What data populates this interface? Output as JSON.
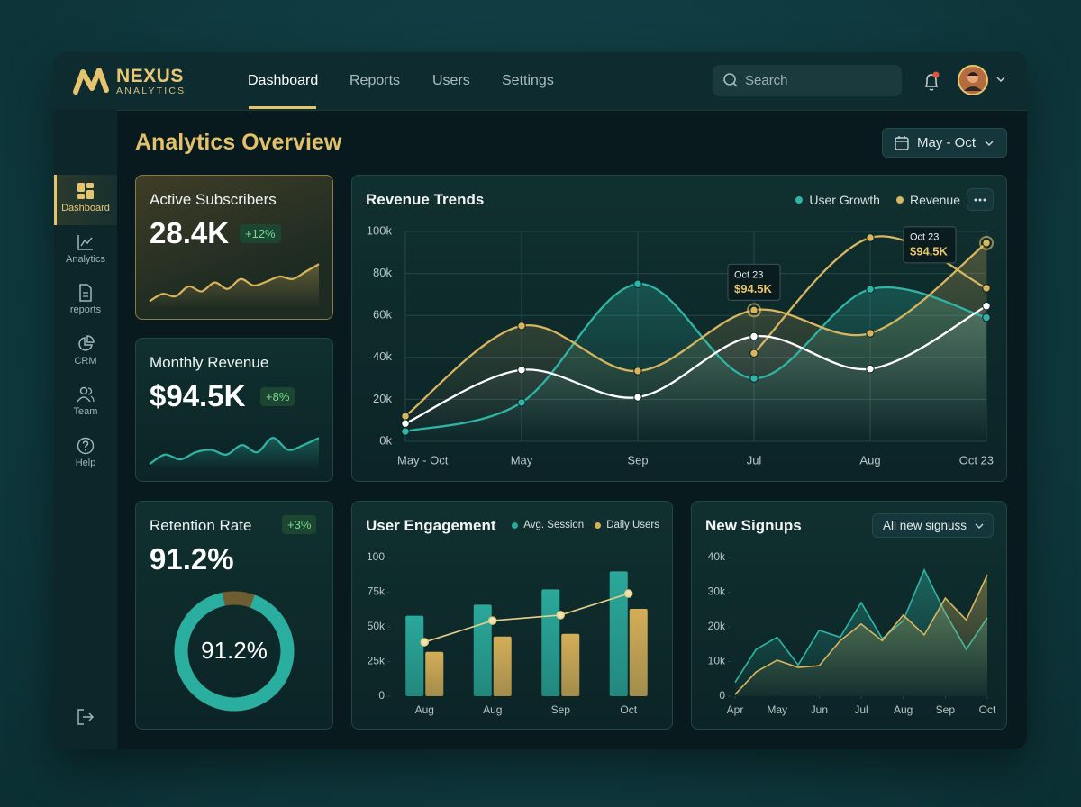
{
  "brand": {
    "name": "NEXUS",
    "tagline": "ANALYTICS"
  },
  "nav": [
    "Dashboard",
    "Reports",
    "Users",
    "Settings"
  ],
  "search": "Search",
  "sidebar": [
    "Dashboard",
    "Analytics",
    "reports",
    "CRM",
    "Team",
    "Help"
  ],
  "title": "Analytics Overview",
  "date_range": "May - Oct",
  "cards": [
    {
      "label": "Active Subscribers",
      "value": "28.4K",
      "change": "+12%",
      "sparkline": {
        "type": "area",
        "color": "#d9b45a",
        "ylim": [
          0,
          100
        ],
        "values": [
          10,
          25,
          20,
          40,
          30,
          48,
          35,
          55,
          42,
          50,
          60,
          55,
          70,
          85
        ]
      }
    },
    {
      "label": "Monthly Revenue",
      "value": "$94.5K",
      "change": "+8%",
      "sparkline": {
        "type": "area",
        "color": "#2fb5a5",
        "ylim": [
          0,
          100
        ],
        "values": [
          5,
          25,
          15,
          30,
          35,
          25,
          45,
          30,
          60,
          35,
          45,
          60
        ]
      }
    }
  ],
  "retention": {
    "label": "Retention Rate",
    "value": "91.2%",
    "change": "+3%",
    "gauge": {
      "type": "donut",
      "value": 91.2,
      "label": "91.2%",
      "range": [
        0,
        100
      ],
      "color": "#2aae9f",
      "track_color": "#6e5d31"
    }
  },
  "revenue_trends": {
    "type": "line",
    "title": "Revenue Trends",
    "categories": [
      "May - Oct",
      "May",
      "Sep",
      "Jul",
      "Aug",
      "Oct 23"
    ],
    "ylim": [
      0,
      100000
    ],
    "yticks": [
      {
        "value": 0,
        "label": "0k"
      },
      {
        "value": 20000,
        "label": "20k"
      },
      {
        "value": 40000,
        "label": "40k"
      },
      {
        "value": 60000,
        "label": "60k"
      },
      {
        "value": 80000,
        "label": "80k"
      },
      {
        "value": 100000,
        "label": "100k"
      }
    ],
    "grid": true,
    "series": [
      {
        "name": "User Growth",
        "color": "#2fb5a5",
        "area": true,
        "values": [
          4700,
          18500,
          75000,
          30000,
          72500,
          59000
        ]
      },
      {
        "name": "Revenue",
        "color": "#d8b660",
        "area": true,
        "values": [
          12000,
          55000,
          33500,
          62500,
          51500,
          94500
        ]
      },
      {
        "color": "#d8b660",
        "values": [
          null,
          null,
          null,
          42000,
          97000,
          73000
        ]
      },
      {
        "color": "#ffffff",
        "area": true,
        "values": [
          8500,
          34000,
          21000,
          50000,
          34500,
          64500
        ]
      }
    ],
    "tooltips": [
      {
        "title": "Oct 23",
        "label": "$94.5K"
      },
      {
        "title": "Oct 23",
        "label": "$94.5K"
      }
    ]
  },
  "user_engagement": {
    "type": "bar",
    "title": "User Engagement",
    "categories": [
      "Aug",
      "Aug",
      "Sep",
      "Oct"
    ],
    "ylim": [
      0,
      100
    ],
    "yticks": [
      0,
      {
        "value": 25,
        "label": "25k"
      },
      {
        "value": 50,
        "label": "50k"
      },
      {
        "value": 75,
        "label": "75k"
      },
      100
    ],
    "series": [
      {
        "name": "Avg. Session",
        "color": "#2aa89a",
        "values": [
          58,
          66,
          77,
          90
        ]
      },
      {
        "name": "Daily Users",
        "color": "#d4ae58",
        "values": [
          32,
          43,
          45,
          63
        ]
      },
      {
        "type": "line",
        "color": "#e6cf8a",
        "values": [
          39,
          54.5,
          58.5,
          74
        ]
      }
    ]
  },
  "new_signups": {
    "type": "area",
    "title": "New Signups",
    "filter": "All new signuss",
    "xlim": [
      0,
      6
    ],
    "xticks": [
      {
        "value": 0,
        "label": "Apr"
      },
      {
        "value": 1,
        "label": "May"
      },
      {
        "value": 2,
        "label": "Jun"
      },
      {
        "value": 3,
        "label": "Jul"
      },
      {
        "value": 4,
        "label": "Aug"
      },
      {
        "value": 5,
        "label": "Sep"
      },
      {
        "value": 6,
        "label": "Oct"
      }
    ],
    "ylim": [
      0,
      40000
    ],
    "yticks": [
      0,
      {
        "value": 10000,
        "label": "10k"
      },
      {
        "value": 20000,
        "label": "20k"
      },
      {
        "value": 30000,
        "label": "30k"
      },
      {
        "value": 40000,
        "label": "40k"
      }
    ],
    "x": [
      0,
      0.5,
      1,
      1.5,
      2,
      2.5,
      3,
      3.5,
      4,
      4.5,
      5,
      5.5,
      6
    ],
    "series": [
      {
        "color": "#2fb5a5",
        "values": [
          4000,
          13500,
          17000,
          9000,
          19000,
          17000,
          27000,
          16600,
          21800,
          36400,
          24000,
          13500,
          22600
        ]
      },
      {
        "color": "#d8b660",
        "values": [
          500,
          7000,
          10400,
          8300,
          8800,
          16000,
          20800,
          16000,
          23400,
          17700,
          28300,
          22000,
          35000
        ]
      }
    ]
  }
}
